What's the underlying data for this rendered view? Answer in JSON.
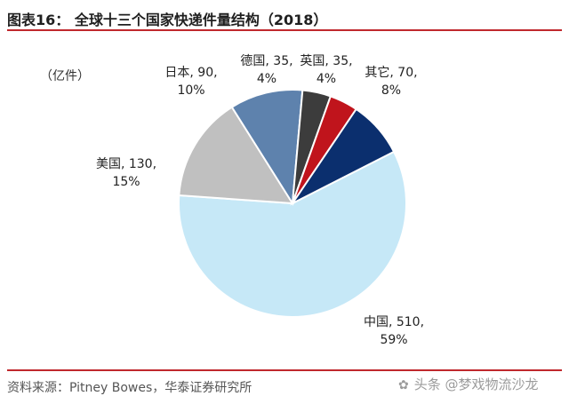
{
  "header": {
    "title": "图表16：   全球十三个国家快递件量结构（2018）"
  },
  "unit_label": "（亿件）",
  "source": "资料来源：Pitney Bowes，华泰证券研究所",
  "watermark": {
    "icon": "wechat-icon",
    "text": "头条 @梦戏物流沙龙"
  },
  "chart_data": {
    "type": "pie",
    "title": "全球十三个国家快递件量结构（2018）",
    "unit": "亿件",
    "slices": [
      {
        "name": "中国",
        "value": 510,
        "percent": "59%",
        "color": "#c6e8f7",
        "label_line1": "中国, 510,",
        "label_line2": "59%"
      },
      {
        "name": "美国",
        "value": 130,
        "percent": "15%",
        "color": "#c0c0c0",
        "label_line1": "美国, 130,",
        "label_line2": "15%"
      },
      {
        "name": "日本",
        "value": 90,
        "percent": "10%",
        "color": "#5e82ad",
        "label_line1": "日本, 90,",
        "label_line2": "10%"
      },
      {
        "name": "德国",
        "value": 35,
        "percent": "4%",
        "color": "#3c3c3c",
        "label_line1": "德国, 35,",
        "label_line2": "4%"
      },
      {
        "name": "英国",
        "value": 35,
        "percent": "4%",
        "color": "#c0141c",
        "label_line1": "英国, 35,",
        "label_line2": "4%"
      },
      {
        "name": "其它",
        "value": 70,
        "percent": "8%",
        "color": "#0b2f6e",
        "label_line1": "其它, 70,",
        "label_line2": "8%"
      }
    ]
  }
}
